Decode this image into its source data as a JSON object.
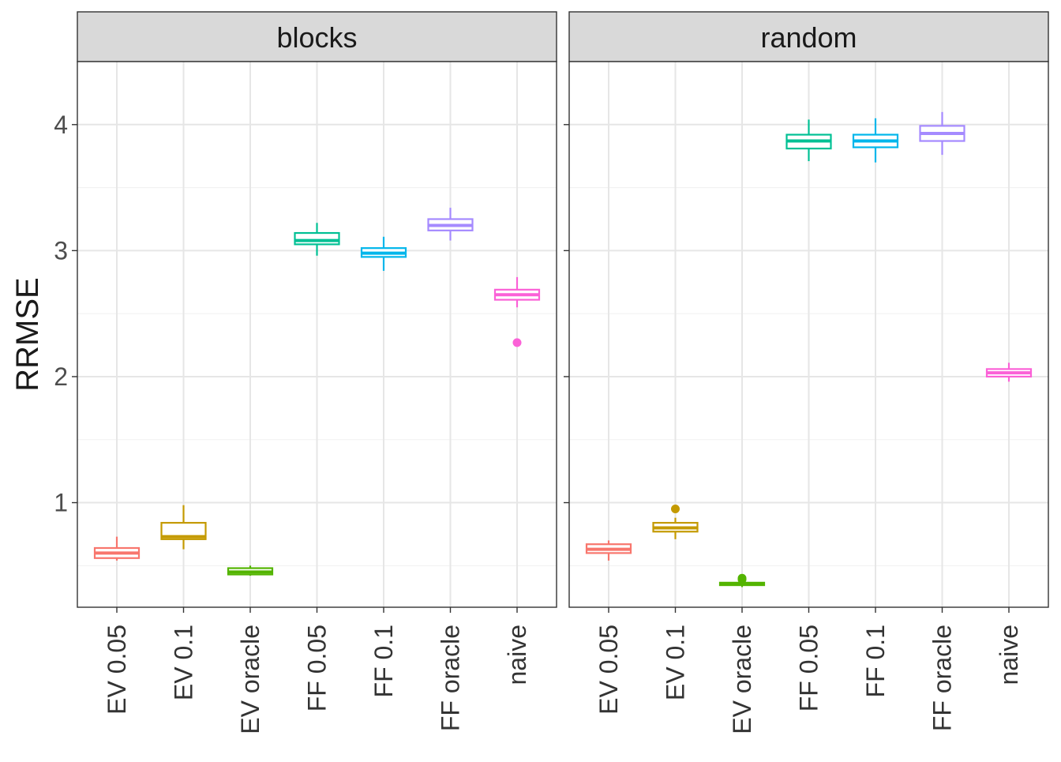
{
  "chart_data": {
    "type": "boxplot",
    "ylabel": "RRMSE",
    "xlabel": "",
    "ylim": [
      0.17,
      4.5
    ],
    "y_ticks": [
      1,
      2,
      3,
      4
    ],
    "categories": [
      "EV  0.05",
      "EV 0.1",
      "EV oracle",
      "FF 0.05",
      "FF 0.1",
      "FF oracle",
      "naive"
    ],
    "colors": [
      "#F8766D",
      "#C49A00",
      "#53B400",
      "#00C094",
      "#00B6EB",
      "#A58AFF",
      "#FB61D7"
    ],
    "grid": true,
    "legend": "none",
    "panels": [
      {
        "name": "blocks",
        "boxes": [
          {
            "category": "EV  0.05",
            "min": 0.54,
            "q1": 0.56,
            "median": 0.6,
            "q3": 0.64,
            "max": 0.73,
            "outliers": []
          },
          {
            "category": "EV 0.1",
            "min": 0.63,
            "q1": 0.71,
            "median": 0.73,
            "q3": 0.84,
            "max": 0.98,
            "outliers": []
          },
          {
            "category": "EV oracle",
            "min": 0.42,
            "q1": 0.43,
            "median": 0.45,
            "q3": 0.48,
            "max": 0.5,
            "outliers": []
          },
          {
            "category": "FF 0.05",
            "min": 2.96,
            "q1": 3.05,
            "median": 3.08,
            "q3": 3.14,
            "max": 3.22,
            "outliers": []
          },
          {
            "category": "FF 0.1",
            "min": 2.84,
            "q1": 2.95,
            "median": 2.98,
            "q3": 3.02,
            "max": 3.11,
            "outliers": []
          },
          {
            "category": "FF oracle",
            "min": 3.08,
            "q1": 3.16,
            "median": 3.2,
            "q3": 3.25,
            "max": 3.34,
            "outliers": []
          },
          {
            "category": "naive",
            "min": 2.55,
            "q1": 2.61,
            "median": 2.65,
            "q3": 2.69,
            "max": 2.79,
            "outliers": [
              2.27
            ]
          }
        ]
      },
      {
        "name": "random",
        "boxes": [
          {
            "category": "EV  0.05",
            "min": 0.54,
            "q1": 0.6,
            "median": 0.63,
            "q3": 0.67,
            "max": 0.7,
            "outliers": []
          },
          {
            "category": "EV 0.1",
            "min": 0.71,
            "q1": 0.77,
            "median": 0.8,
            "q3": 0.84,
            "max": 0.88,
            "outliers": [
              0.95
            ]
          },
          {
            "category": "EV oracle",
            "min": 0.33,
            "q1": 0.345,
            "median": 0.355,
            "q3": 0.365,
            "max": 0.37,
            "outliers": [
              0.4,
              0.39
            ]
          },
          {
            "category": "FF 0.05",
            "min": 3.71,
            "q1": 3.81,
            "median": 3.87,
            "q3": 3.92,
            "max": 4.04,
            "outliers": []
          },
          {
            "category": "FF 0.1",
            "min": 3.7,
            "q1": 3.82,
            "median": 3.87,
            "q3": 3.92,
            "max": 4.05,
            "outliers": []
          },
          {
            "category": "FF oracle",
            "min": 3.76,
            "q1": 3.87,
            "median": 3.93,
            "q3": 3.99,
            "max": 4.1,
            "outliers": []
          },
          {
            "category": "naive",
            "min": 1.96,
            "q1": 2.0,
            "median": 2.03,
            "q3": 2.06,
            "max": 2.11,
            "outliers": []
          }
        ]
      }
    ]
  }
}
